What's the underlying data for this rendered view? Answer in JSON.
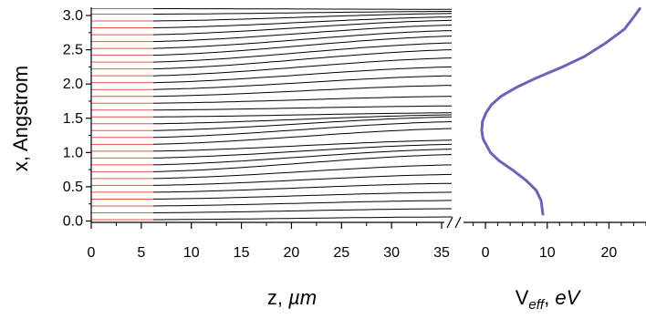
{
  "chart_data": [
    {
      "type": "line",
      "description_role": "trajectory-panel",
      "xlabel_main": "z, ",
      "xlabel_unit": "µm",
      "ylabel": "x, Angstrom",
      "xlim": [
        0,
        36
      ],
      "ylim": [
        -0.02,
        3.12
      ],
      "x_ticks": [
        0,
        5,
        10,
        15,
        20,
        25,
        30,
        35
      ],
      "x_tick_labels": [
        "0",
        "5",
        "10",
        "15",
        "20",
        "25",
        "30",
        "35"
      ],
      "y_ticks": [
        0.0,
        0.5,
        1.0,
        1.5,
        2.0,
        2.5,
        3.0
      ],
      "y_tick_labels": [
        "0.0",
        "0.5",
        "1.0",
        "1.5",
        "2.0",
        "2.5",
        "3.0"
      ],
      "red_segment_end_z": 6.2,
      "red_color": "#e8504a",
      "line_color": "#000000",
      "start_positions_x": [
        0.02,
        0.12,
        0.22,
        0.32,
        0.42,
        0.52,
        0.62,
        0.72,
        0.82,
        0.92,
        1.02,
        1.12,
        1.22,
        1.32,
        1.42,
        1.52,
        1.62,
        1.72,
        1.82,
        1.92,
        2.02,
        2.12,
        2.22,
        2.32,
        2.42,
        2.52,
        2.62,
        2.72,
        2.82,
        2.92,
        3.02,
        3.1
      ],
      "end_positions_x_at_z36": [
        0.06,
        0.18,
        0.3,
        0.42,
        0.55,
        0.68,
        0.82,
        0.97,
        1.05,
        1.12,
        1.18,
        1.35,
        1.45,
        1.52,
        1.55,
        1.58,
        1.68,
        1.82,
        1.98,
        2.12,
        2.25,
        2.38,
        2.5,
        2.6,
        2.7,
        2.78,
        2.86,
        2.93,
        2.98,
        3.03,
        3.06,
        3.09
      ],
      "axis_break": true
    },
    {
      "type": "line",
      "description_role": "effective-potential-panel",
      "xlabel_main": "V",
      "xlabel_sub": "eff",
      "xlabel_tail": ", ",
      "xlabel_unit": "eV",
      "xlim": [
        -4,
        26
      ],
      "x_ticks": [
        0,
        10,
        20
      ],
      "x_tick_labels": [
        "0",
        "10",
        "20"
      ],
      "series": [
        {
          "color": "#6a63b8",
          "x_values_V": [
            9.3,
            9.0,
            8.2,
            6.5,
            4.3,
            2.2,
            0.8,
            0.2,
            -0.4,
            -0.6,
            -0.5,
            0.1,
            1.0,
            2.5,
            5.0,
            8.5,
            12.5,
            16.0,
            19.5,
            22.5,
            24.2,
            25.0
          ],
          "y_values_x": [
            0.1,
            0.3,
            0.45,
            0.6,
            0.75,
            0.88,
            1.0,
            1.1,
            1.2,
            1.32,
            1.45,
            1.58,
            1.7,
            1.82,
            1.95,
            2.1,
            2.25,
            2.4,
            2.6,
            2.8,
            3.0,
            3.1
          ]
        }
      ]
    }
  ]
}
